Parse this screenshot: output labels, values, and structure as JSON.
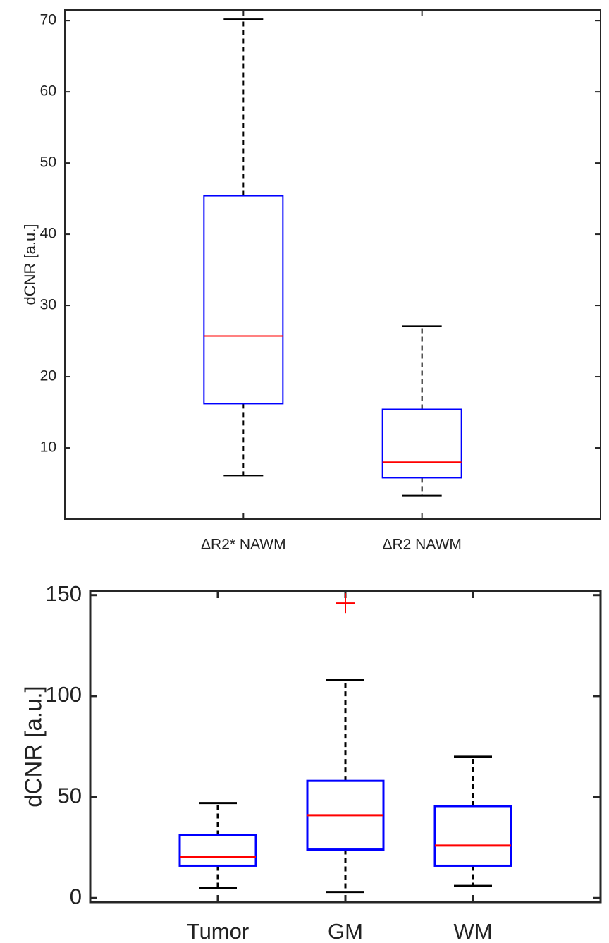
{
  "chart_data": [
    {
      "type": "box",
      "ylabel": "dCNR [a.u.]",
      "ylim": [
        0,
        71.5
      ],
      "yticks": [
        10,
        20,
        30,
        40,
        50,
        60,
        70
      ],
      "categories": [
        "ΔR2* NAWM",
        "ΔR2 NAWM"
      ],
      "boxes": [
        {
          "category": "ΔR2* NAWM",
          "whisker_low": 6.1,
          "q1": 16.2,
          "median": 25.7,
          "q3": 45.4,
          "whisker_high": 70.2,
          "outliers": []
        },
        {
          "category": "ΔR2 NAWM",
          "whisker_low": 3.3,
          "q1": 5.8,
          "median": 8.0,
          "q3": 15.4,
          "whisker_high": 27.1,
          "outliers": []
        }
      ],
      "colors": {
        "box": "#0000ff",
        "median": "#ff0000",
        "whisker": "#000000",
        "axis": "#262626"
      }
    },
    {
      "type": "box",
      "ylabel": "dCNR [a.u.]",
      "ylim": [
        -2,
        152
      ],
      "yticks": [
        0,
        50,
        100,
        150
      ],
      "categories": [
        "Tumor",
        "GM",
        "WM"
      ],
      "boxes": [
        {
          "category": "Tumor",
          "whisker_low": 5,
          "q1": 16,
          "median": 20.5,
          "q3": 31,
          "whisker_high": 47,
          "outliers": []
        },
        {
          "category": "GM",
          "whisker_low": 3,
          "q1": 24,
          "median": 41,
          "q3": 58,
          "whisker_high": 108,
          "outliers": [
            146
          ]
        },
        {
          "category": "WM",
          "whisker_low": 6,
          "q1": 16,
          "median": 26,
          "q3": 45.5,
          "whisker_high": 70,
          "outliers": []
        }
      ],
      "colors": {
        "box": "#0000ff",
        "median": "#ff0000",
        "whisker": "#000000",
        "outlier": "#ff0000",
        "axis": "#262626"
      }
    }
  ]
}
